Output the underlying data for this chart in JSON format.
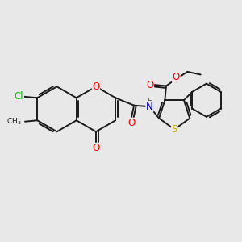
{
  "background_color": "#e8e8e8",
  "bond_color": "#1a1a1a",
  "bond_width": 1.4,
  "atom_colors": {
    "O": "#ff0000",
    "N": "#0000cd",
    "S": "#ccaa00",
    "Cl": "#00bb00",
    "C": "#1a1a1a",
    "H": "#444444"
  },
  "font_size": 8.5,
  "figsize": [
    3.0,
    3.0
  ],
  "dpi": 100
}
